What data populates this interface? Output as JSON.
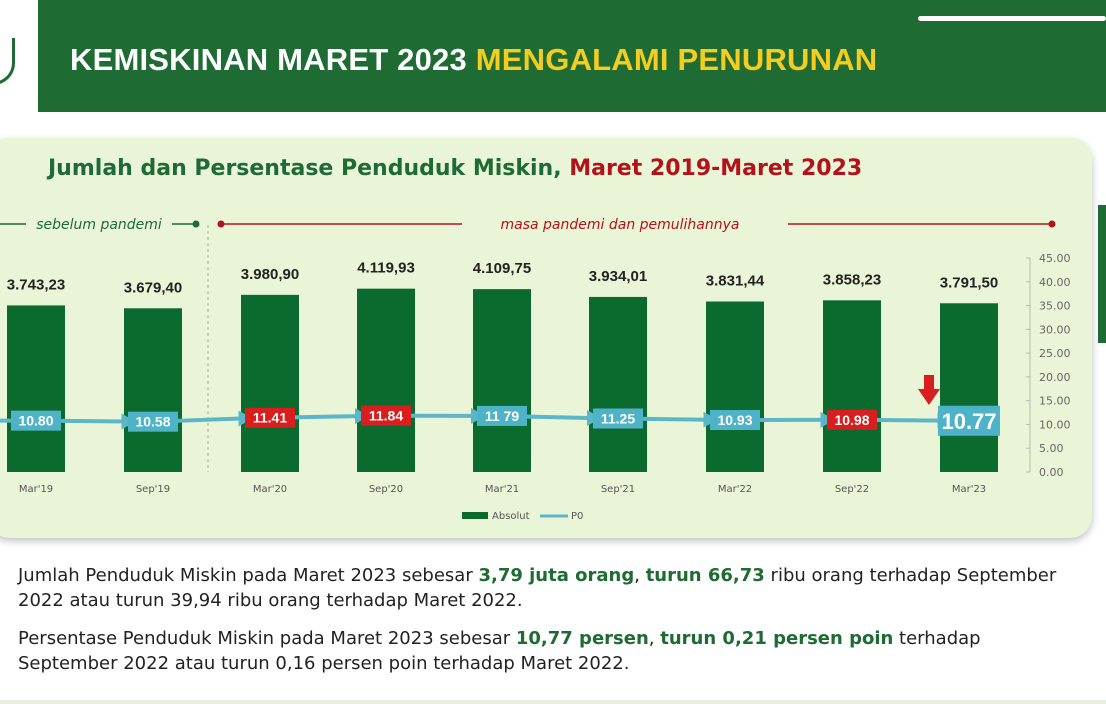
{
  "header": {
    "title_white": "KEMISKINAN MARET 2023",
    "title_yellow": "MENGALAMI PENURUNAN"
  },
  "chart_title": {
    "part1": "Jumlah dan Persentase Penduduk Miskin",
    "separator": ",",
    "part2": "Maret 2019-Maret 2023"
  },
  "periods": {
    "before": "sebelum pandemi",
    "during": "masa pandemi dan pemulihannya"
  },
  "chart_data": {
    "type": "bar",
    "categories": [
      "Mar'19",
      "Sep'19",
      "Mar'20",
      "Sep'20",
      "Mar'21",
      "Sep'21",
      "Mar'22",
      "Sep'22",
      "Mar'23"
    ],
    "series": [
      {
        "name": "Absolut",
        "type": "bar",
        "values": [
          3743.23,
          3679.4,
          3980.9,
          4119.93,
          4109.75,
          3934.01,
          3831.44,
          3858.23,
          3791.5
        ],
        "labels": [
          "3.743,23",
          "3.679,40",
          "3.980,90",
          "4.119,93",
          "4.109,75",
          "3.934,01",
          "3.831,44",
          "3.858,23",
          "3.791,50"
        ],
        "color": "#0b6b2f"
      },
      {
        "name": "P0",
        "type": "line",
        "values": [
          10.8,
          10.58,
          11.41,
          11.84,
          11.79,
          11.25,
          10.93,
          10.98,
          10.77
        ],
        "labels": [
          "10.80",
          "10.58",
          "11.41",
          "11.84",
          "11 79",
          "11.25",
          "10.93",
          "10.98",
          "10.77"
        ],
        "label_colors": [
          "#4fb3c8",
          "#4fb3c8",
          "#d81e1e",
          "#d81e1e",
          "#4fb3c8",
          "#4fb3c8",
          "#4fb3c8",
          "#d81e1e",
          "#4fb3c8"
        ],
        "color": "#5ab7c9",
        "axis": "right"
      }
    ],
    "right_axis": {
      "ticks": [
        "45.00",
        "40.00",
        "35.00",
        "30.00",
        "25.00",
        "20.00",
        "15.00",
        "10.00",
        "5.00",
        "0.00"
      ],
      "ylim": [
        0,
        45
      ]
    },
    "legend": [
      "Absolut",
      "P0"
    ],
    "legend_position": "bottom-center",
    "grid": false
  },
  "paragraphs": [
    {
      "parts": [
        {
          "text": "Jumlah Penduduk Miskin pada Maret 2023 sebesar ",
          "bold": false
        },
        {
          "text": "3,79 juta orang",
          "bold": true
        },
        {
          "text": ", ",
          "bold": false
        },
        {
          "text": "turun 66,73",
          "bold": true
        },
        {
          "text": " ribu orang terhadap September 2022 atau turun 39,94 ribu orang terhadap Maret 2022.",
          "bold": false
        }
      ]
    },
    {
      "parts": [
        {
          "text": "Persentase Penduduk Miskin pada Maret 2023 sebesar ",
          "bold": false
        },
        {
          "text": "10,77 persen",
          "bold": true
        },
        {
          "text": ", ",
          "bold": false
        },
        {
          "text": "turun 0,21 persen poin",
          "bold": true
        },
        {
          "text": " terhadap September 2022 atau turun 0,16 persen poin terhadap Maret 2022.",
          "bold": false
        }
      ]
    }
  ]
}
